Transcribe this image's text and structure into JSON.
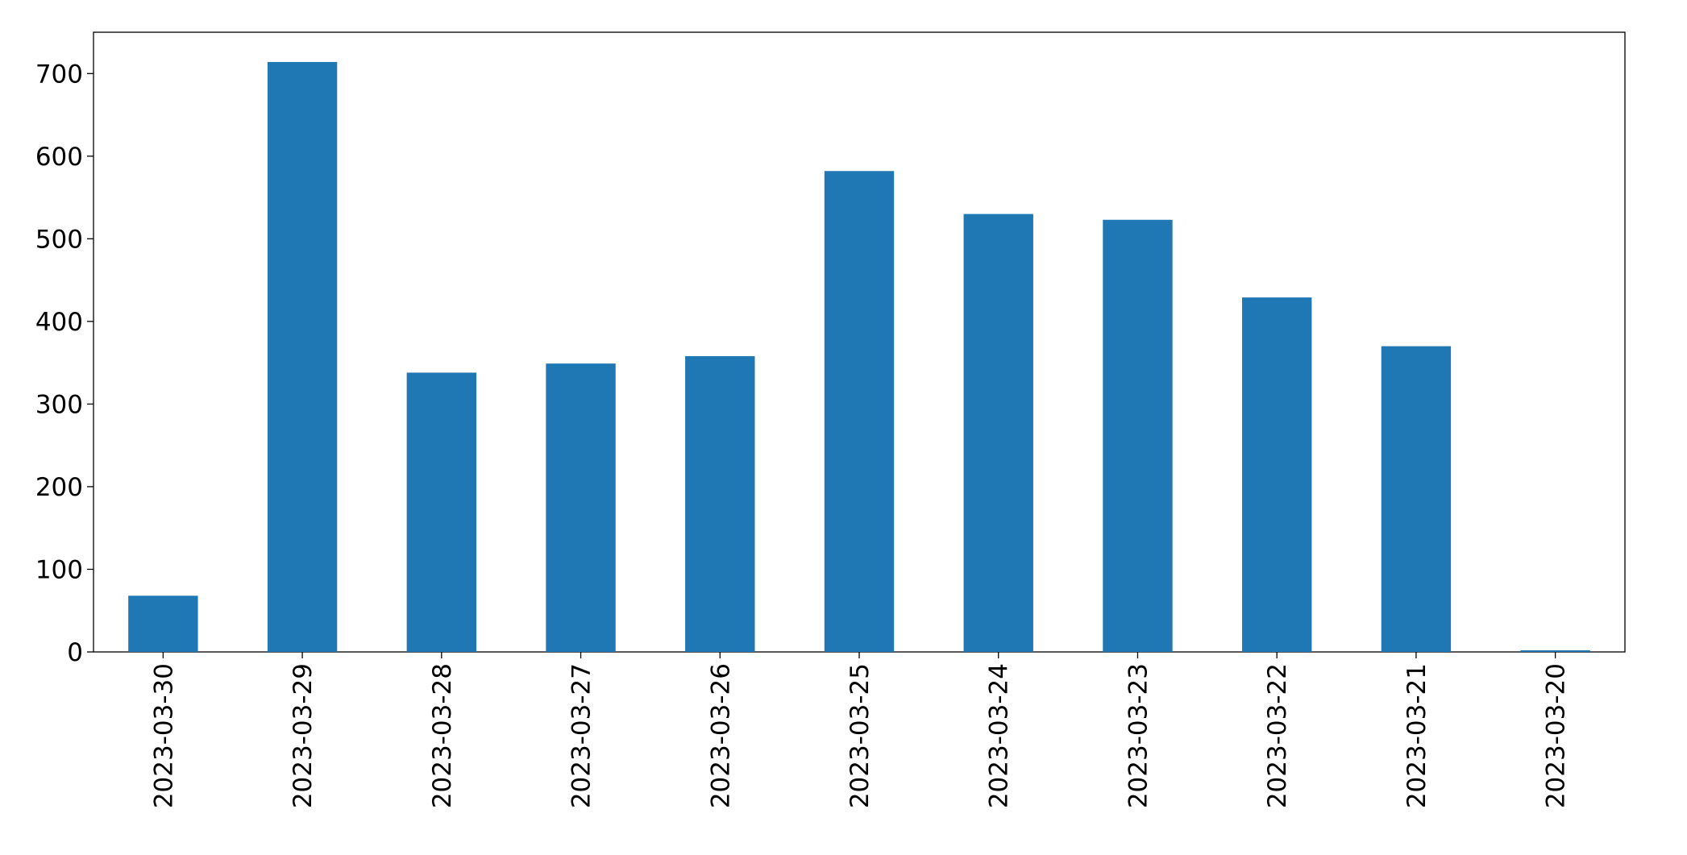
{
  "chart_data": {
    "type": "bar",
    "categories": [
      "2023-03-30",
      "2023-03-29",
      "2023-03-28",
      "2023-03-27",
      "2023-03-26",
      "2023-03-25",
      "2023-03-24",
      "2023-03-23",
      "2023-03-22",
      "2023-03-21",
      "2023-03-20"
    ],
    "values": [
      68,
      714,
      338,
      349,
      358,
      582,
      530,
      523,
      429,
      370,
      2
    ],
    "color": "#1f77b4",
    "ylim": [
      0,
      750
    ],
    "yticks": [
      0,
      100,
      200,
      300,
      400,
      500,
      600,
      700
    ],
    "grid": false
  }
}
